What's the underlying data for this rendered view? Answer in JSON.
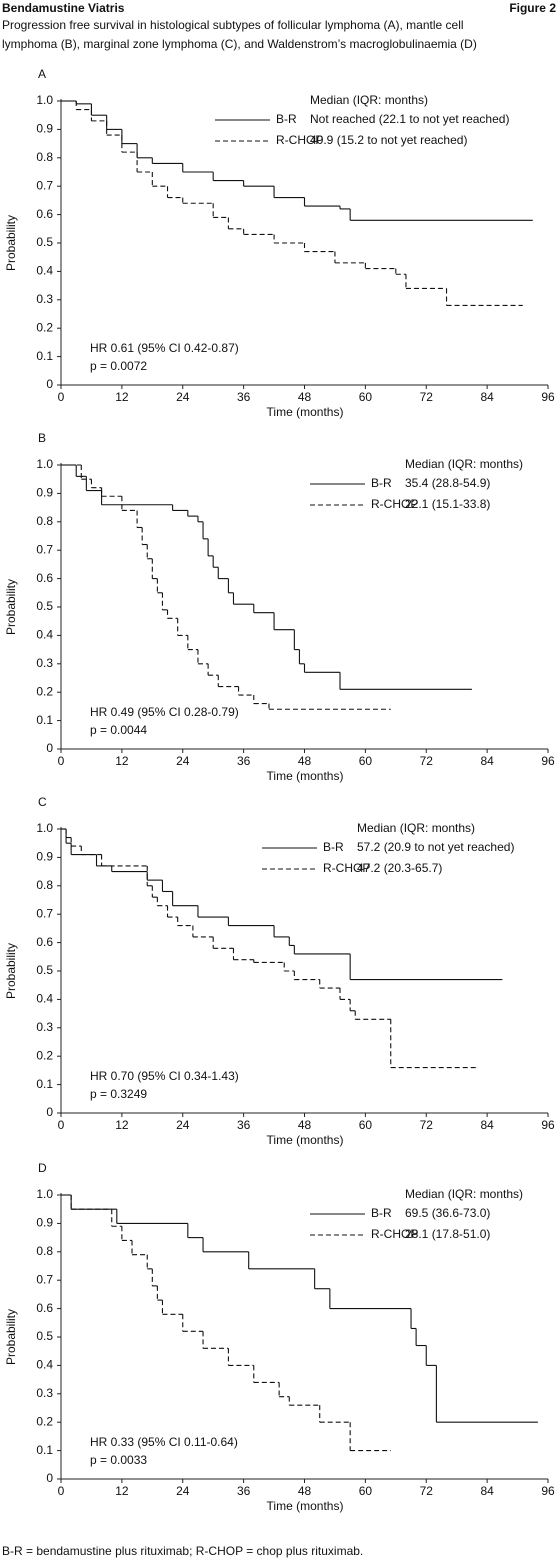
{
  "header": {
    "left": "Bendamustine Viatris",
    "right": "Figure 2",
    "caption": [
      "Progression free survival in histological subtypes of follicular lymphoma (A), mantle cell",
      "lymphoma (B), marginal zone lymphoma (C), and Waldenstrom’s macroglobulinaemia (D)"
    ]
  },
  "footnote": "B-R = bendamustine plus rituximab; R-CHOP = chop plus rituximab.",
  "chart_data": [
    {
      "type": "step",
      "label": "A",
      "xlabel": "Time (months)",
      "ylabel": "Probability",
      "xlim": [
        0,
        96
      ],
      "ylim": [
        0,
        1
      ],
      "xticks": [
        0,
        12,
        24,
        36,
        48,
        60,
        72,
        84,
        96
      ],
      "yticks": [
        {
          "value": 1,
          "label": "1.0"
        },
        0.9,
        0.8,
        0.7,
        0.6,
        0.5,
        0.4,
        0.3,
        0.2,
        0.1,
        0
      ],
      "legend_title": "Median (IQR: months)",
      "annotations": [
        "HR 0.61 (95% CI 0.42-0.87)",
        "p = 0.0072"
      ],
      "series": [
        {
          "name": "B-R",
          "style": "solid",
          "median": "Not reached (22.1 to not yet reached)",
          "x": [
            0,
            3,
            6,
            9,
            12,
            15,
            18,
            24,
            30,
            36,
            42,
            48,
            55,
            57,
            93
          ],
          "values": [
            1,
            0.99,
            0.95,
            0.9,
            0.85,
            0.8,
            0.78,
            0.75,
            0.72,
            0.7,
            0.66,
            0.63,
            0.62,
            0.58,
            0.58
          ]
        },
        {
          "name": "R-CHOP",
          "style": "dashed",
          "median": "40.9 (15.2 to not yet reached)",
          "x": [
            0,
            3,
            6,
            9,
            12,
            15,
            18,
            21,
            24,
            30,
            33,
            36,
            42,
            48,
            54,
            60,
            66,
            68,
            76,
            91
          ],
          "values": [
            1,
            0.97,
            0.93,
            0.88,
            0.82,
            0.75,
            0.7,
            0.66,
            0.64,
            0.59,
            0.55,
            0.53,
            0.5,
            0.47,
            0.43,
            0.41,
            0.39,
            0.34,
            0.28,
            0.28
          ]
        }
      ]
    },
    {
      "type": "step",
      "label": "B",
      "xlabel": "Time (months)",
      "ylabel": "Probability",
      "xlim": [
        0,
        96
      ],
      "ylim": [
        0,
        1
      ],
      "xticks": [
        0,
        12,
        24,
        36,
        48,
        60,
        72,
        84,
        96
      ],
      "yticks": [
        {
          "value": 1,
          "label": "1.0"
        },
        0.9,
        0.8,
        0.7,
        0.6,
        0.5,
        0.4,
        0.3,
        0.2,
        0.1,
        0
      ],
      "legend_title": "Median (IQR: months)",
      "annotations": [
        "HR 0.49 (95% CI 0.28-0.79)",
        "p = 0.0044"
      ],
      "series": [
        {
          "name": "B-R",
          "style": "solid",
          "median": "35.4 (28.8-54.9)",
          "x": [
            0,
            3,
            5,
            8,
            22,
            25,
            27,
            28,
            29,
            30,
            31,
            33,
            34,
            38,
            42,
            46,
            47,
            48,
            55,
            81
          ],
          "values": [
            1,
            0.96,
            0.91,
            0.86,
            0.84,
            0.82,
            0.8,
            0.74,
            0.68,
            0.64,
            0.6,
            0.55,
            0.51,
            0.48,
            0.42,
            0.35,
            0.3,
            0.27,
            0.21,
            0.21
          ]
        },
        {
          "name": "R-CHOP",
          "style": "dashed",
          "median": "22.1 (15.1-33.8)",
          "x": [
            0,
            4,
            6,
            8,
            12,
            15,
            16,
            17,
            18,
            19,
            20,
            21,
            23,
            25,
            27,
            29,
            31,
            35,
            38,
            41,
            65
          ],
          "values": [
            1,
            0.95,
            0.92,
            0.89,
            0.84,
            0.78,
            0.72,
            0.67,
            0.6,
            0.55,
            0.49,
            0.46,
            0.4,
            0.35,
            0.3,
            0.26,
            0.22,
            0.19,
            0.16,
            0.14,
            0.14
          ]
        }
      ]
    },
    {
      "type": "step",
      "label": "C",
      "xlabel": "Time (months)",
      "ylabel": "Probability",
      "xlim": [
        0,
        96
      ],
      "ylim": [
        0,
        1
      ],
      "xticks": [
        0,
        12,
        24,
        36,
        48,
        60,
        72,
        84,
        96
      ],
      "yticks": [
        {
          "value": 1,
          "label": "1.0"
        },
        0.9,
        0.8,
        0.7,
        0.6,
        0.5,
        0.4,
        0.3,
        0.2,
        0.1,
        0
      ],
      "legend_title": "Median (IQR: months)",
      "annotations": [
        "HR 0.70 (95% CI 0.34-1.43)",
        "p = 0.3249"
      ],
      "series": [
        {
          "name": "B-R",
          "style": "solid",
          "median": "57.2 (20.9 to not yet reached)",
          "x": [
            0,
            1,
            2,
            7,
            10,
            17,
            20,
            22,
            27,
            33,
            42,
            45,
            46,
            57,
            87
          ],
          "values": [
            1,
            0.95,
            0.91,
            0.87,
            0.85,
            0.82,
            0.78,
            0.73,
            0.69,
            0.66,
            0.62,
            0.59,
            0.56,
            0.47,
            0.47
          ]
        },
        {
          "name": "R-CHOP",
          "style": "dashed",
          "median": "47.2 (20.3-65.7)",
          "x": [
            0,
            1,
            2,
            4,
            8,
            17,
            18,
            19,
            21,
            23,
            26,
            30,
            34,
            38,
            44,
            46,
            51,
            55,
            57,
            58,
            65,
            82
          ],
          "values": [
            1,
            0.97,
            0.94,
            0.91,
            0.87,
            0.8,
            0.76,
            0.73,
            0.69,
            0.66,
            0.62,
            0.58,
            0.54,
            0.53,
            0.5,
            0.47,
            0.44,
            0.4,
            0.36,
            0.33,
            0.16,
            0.16
          ]
        }
      ]
    },
    {
      "type": "step",
      "label": "D",
      "xlabel": "Time (months)",
      "ylabel": "Probability",
      "xlim": [
        0,
        96
      ],
      "ylim": [
        0,
        1
      ],
      "xticks": [
        0,
        12,
        24,
        36,
        48,
        60,
        72,
        84,
        96
      ],
      "yticks": [
        {
          "value": 1,
          "label": "1.0"
        },
        0.9,
        0.8,
        0.7,
        0.6,
        0.5,
        0.4,
        0.3,
        0.2,
        0.1,
        0
      ],
      "legend_title": "Median (IQR: months)",
      "annotations": [
        "HR 0.33 (95% CI 0.11-0.64)",
        "p = 0.0033"
      ],
      "series": [
        {
          "name": "B-R",
          "style": "solid",
          "median": "69.5 (36.6-73.0)",
          "x": [
            0,
            2,
            11,
            25,
            28,
            37,
            50,
            53,
            69,
            70,
            72,
            74,
            94
          ],
          "values": [
            1,
            0.95,
            0.9,
            0.85,
            0.8,
            0.74,
            0.67,
            0.6,
            0.53,
            0.47,
            0.4,
            0.2,
            0.2
          ]
        },
        {
          "name": "R-CHOP",
          "style": "dashed",
          "median": "28.1 (17.8-51.0)",
          "x": [
            0,
            2,
            10,
            12,
            14,
            17,
            18,
            19,
            20,
            24,
            28,
            33,
            38,
            43,
            45,
            51,
            57,
            65
          ],
          "values": [
            1,
            0.95,
            0.89,
            0.84,
            0.79,
            0.74,
            0.68,
            0.63,
            0.58,
            0.52,
            0.46,
            0.4,
            0.34,
            0.29,
            0.26,
            0.2,
            0.1,
            0.1
          ]
        }
      ]
    }
  ]
}
